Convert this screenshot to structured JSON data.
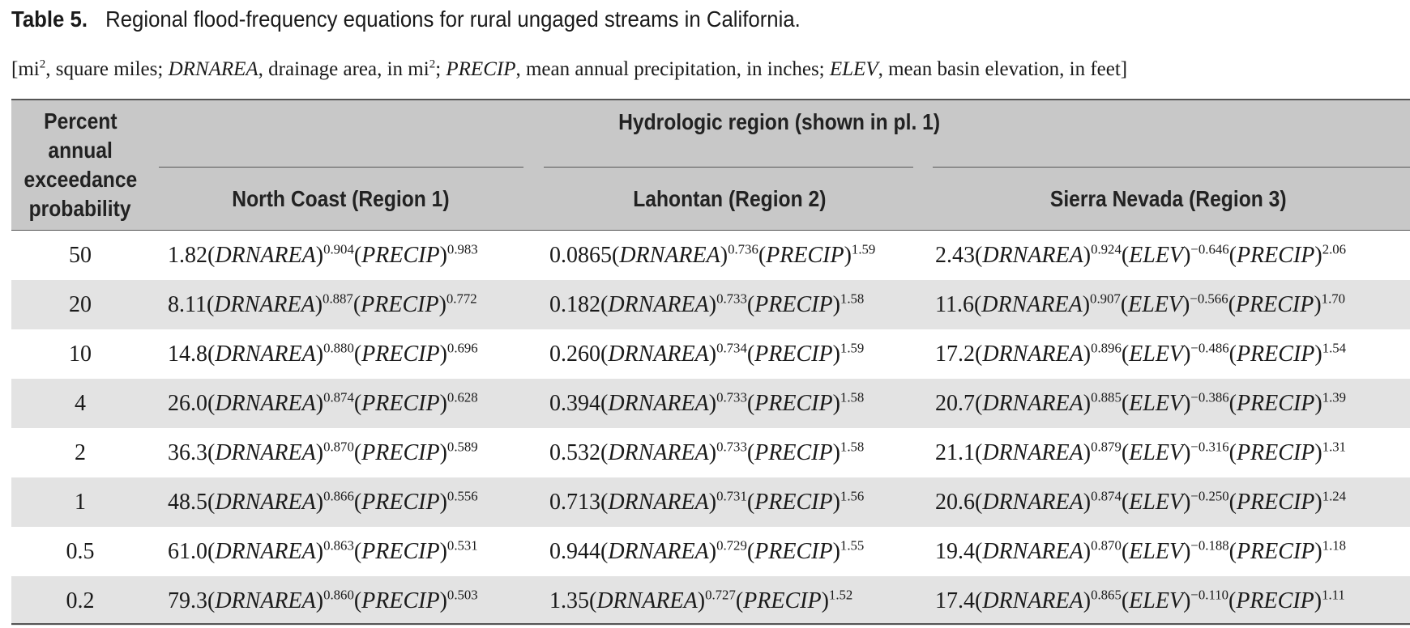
{
  "title": {
    "label": "Table 5.",
    "text": "Regional flood-frequency equations for rural ungaged streams in California."
  },
  "note": {
    "t1": "[mi",
    "sup2": "2",
    "t2": ", square miles; ",
    "drnarea": "DRNAREA",
    "t3": ", drainage area, in mi",
    "t4": "; ",
    "precip": "PRECIP",
    "t5": ", mean annual precipitation, in inches; ",
    "elev": "ELEV",
    "t6": ", mean basin elevation, in feet]"
  },
  "header": {
    "col0": [
      "Percent",
      "annual",
      "exceedance",
      "probability"
    ],
    "group": "Hydrologic region (shown in pl. 1)",
    "regions": [
      "North Coast (Region 1)",
      "Lahontan (Region 2)",
      "Sierra Nevada (Region 3)"
    ]
  },
  "terms": {
    "drnarea": "DRNAREA",
    "precip": "PRECIP",
    "elev": "ELEV"
  },
  "rows": [
    {
      "p": "50",
      "r1": [
        "1.82",
        "0.904",
        "0.983"
      ],
      "r2": [
        "0.0865",
        "0.736",
        "1.59"
      ],
      "r3": [
        "2.43",
        "0.924",
        "−0.646",
        "2.06"
      ]
    },
    {
      "p": "20",
      "r1": [
        "8.11",
        "0.887",
        "0.772"
      ],
      "r2": [
        "0.182",
        "0.733",
        "1.58"
      ],
      "r3": [
        "11.6",
        "0.907",
        "−0.566",
        "1.70"
      ]
    },
    {
      "p": "10",
      "r1": [
        "14.8",
        "0.880",
        "0.696"
      ],
      "r2": [
        "0.260",
        "0.734",
        "1.59"
      ],
      "r3": [
        "17.2",
        "0.896",
        "−0.486",
        "1.54"
      ]
    },
    {
      "p": "4",
      "r1": [
        "26.0",
        "0.874",
        "0.628"
      ],
      "r2": [
        "0.394",
        "0.733",
        "1.58"
      ],
      "r3": [
        "20.7",
        "0.885",
        "−0.386",
        "1.39"
      ]
    },
    {
      "p": "2",
      "r1": [
        "36.3",
        "0.870",
        "0.589"
      ],
      "r2": [
        "0.532",
        "0.733",
        "1.58"
      ],
      "r3": [
        "21.1",
        "0.879",
        "−0.316",
        "1.31"
      ]
    },
    {
      "p": "1",
      "r1": [
        "48.5",
        "0.866",
        "0.556"
      ],
      "r2": [
        "0.713",
        "0.731",
        "1.56"
      ],
      "r3": [
        "20.6",
        "0.874",
        "−0.250",
        "1.24"
      ]
    },
    {
      "p": "0.5",
      "r1": [
        "61.0",
        "0.863",
        "0.531"
      ],
      "r2": [
        "0.944",
        "0.729",
        "1.55"
      ],
      "r3": [
        "19.4",
        "0.870",
        "−0.188",
        "1.18"
      ]
    },
    {
      "p": "0.2",
      "r1": [
        "79.3",
        "0.860",
        "0.503"
      ],
      "r2": [
        "1.35",
        "0.727",
        "1.52"
      ],
      "r3": [
        "17.4",
        "0.865",
        "−0.110",
        "1.11"
      ]
    }
  ],
  "colors": {
    "header_bg": "#c8c8c8",
    "row_shade": "#e3e3e3",
    "rule": "#555555"
  }
}
